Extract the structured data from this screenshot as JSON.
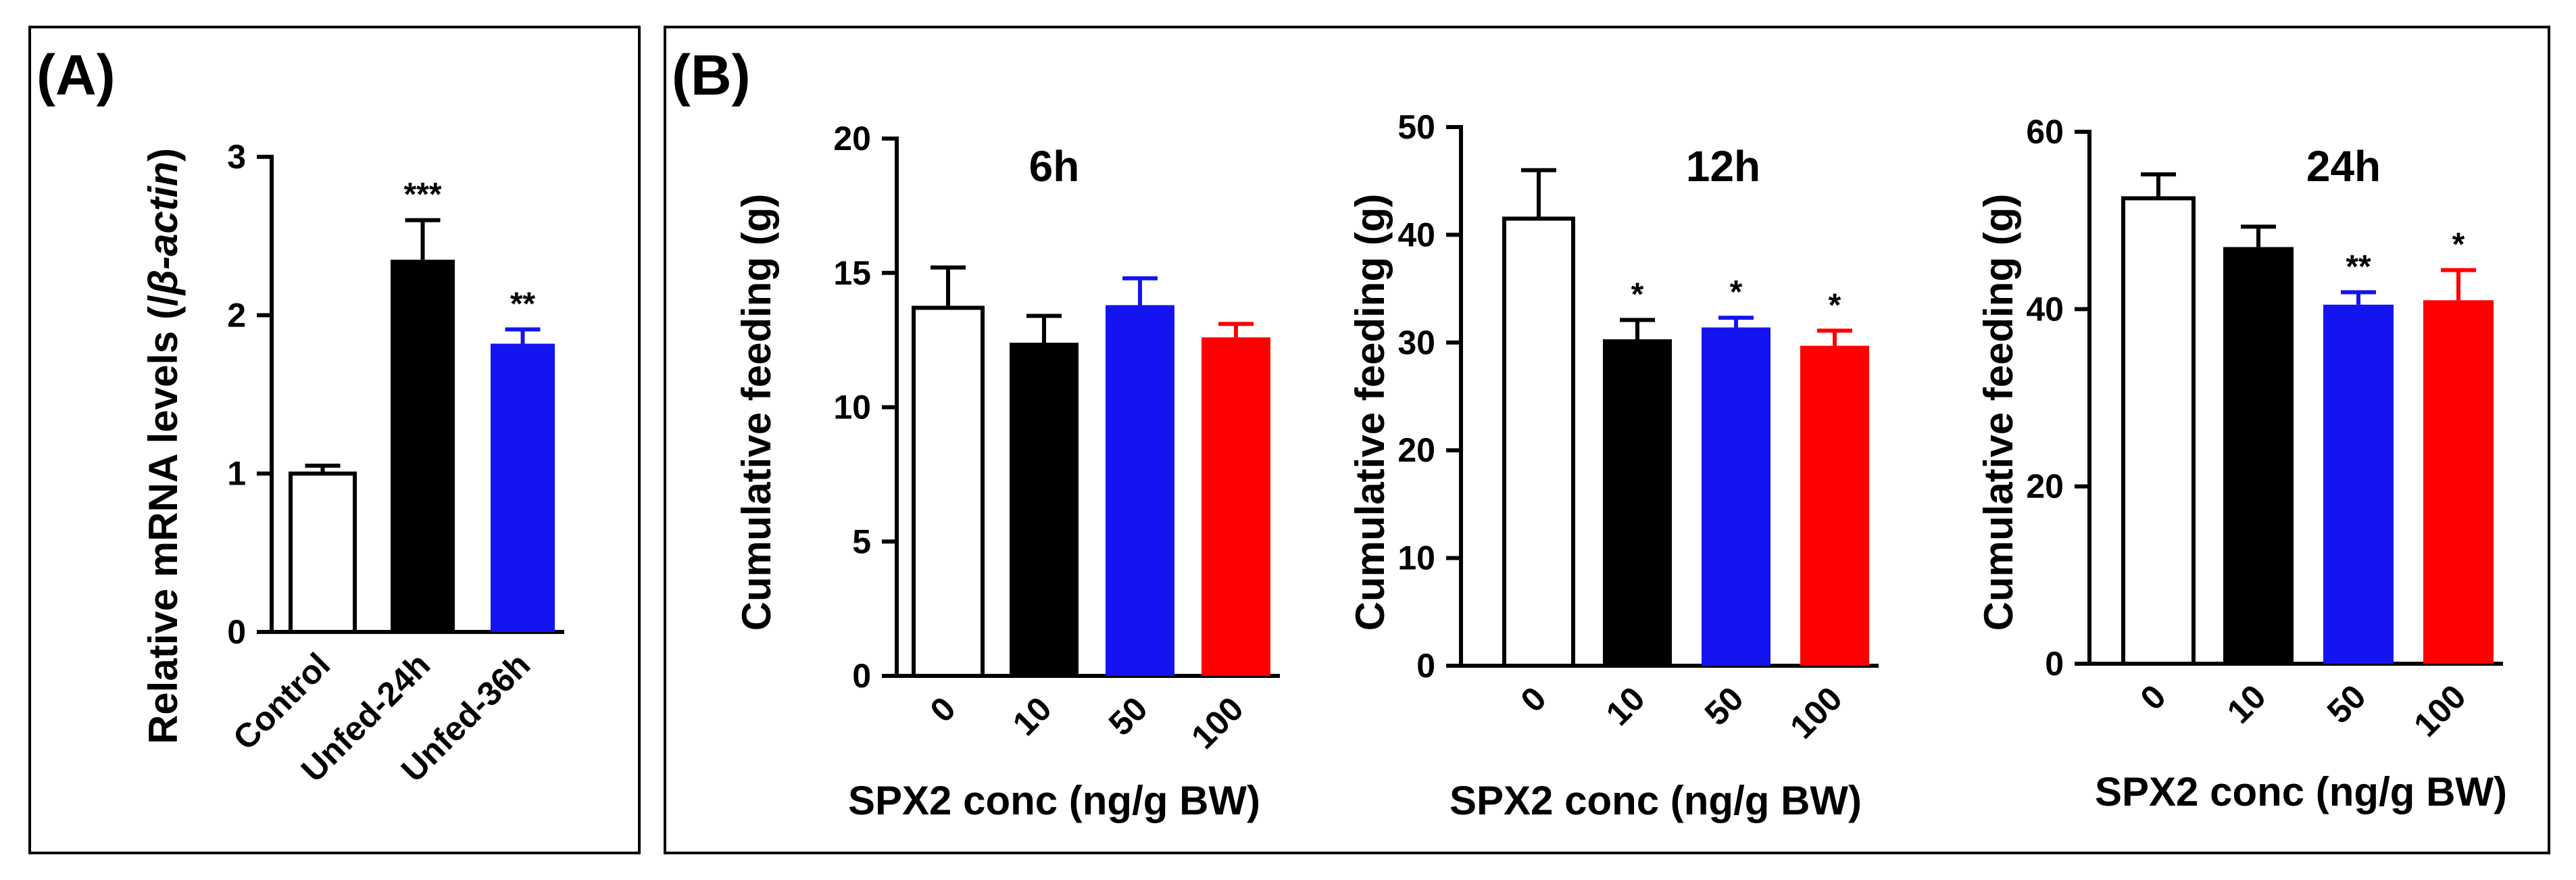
{
  "figure": {
    "panel_A_label": "(A)",
    "panel_B_label": "(B)"
  },
  "colors": {
    "white_bar": "#ffffff",
    "black_bar": "#000000",
    "blue_bar": "#1414f0",
    "red_bar": "#ff0000"
  },
  "chart_data": [
    {
      "id": "A",
      "type": "bar",
      "title": "",
      "ylabel": "Relative mRNA levels (/β-actin)",
      "ylabel_parts": [
        "Relative mRNA levels (/",
        "β-actin",
        ")"
      ],
      "xlabel": "",
      "ylim": [
        0,
        3
      ],
      "yticks": [
        0,
        1,
        2,
        3
      ],
      "categories": [
        "Control",
        "Unfed-24h",
        "Unfed-36h"
      ],
      "values": [
        1.0,
        2.35,
        1.82
      ],
      "errors": [
        0.05,
        0.25,
        0.09
      ],
      "significance": [
        "",
        "***",
        "**"
      ],
      "colors": [
        "#ffffff",
        "#000000",
        "#1414f0"
      ]
    },
    {
      "id": "B1",
      "type": "bar",
      "title": "6h",
      "ylabel": "Cumulative feeding (g)",
      "xlabel": "SPX2 conc (ng/g BW)",
      "ylim": [
        0,
        20
      ],
      "yticks": [
        0,
        5,
        10,
        15,
        20
      ],
      "categories": [
        "0",
        "10",
        "50",
        "100"
      ],
      "values": [
        13.7,
        12.4,
        13.8,
        12.6
      ],
      "errors": [
        1.5,
        1.0,
        1.0,
        0.5
      ],
      "significance": [
        "",
        "",
        "",
        ""
      ],
      "colors": [
        "#ffffff",
        "#000000",
        "#1414f0",
        "#ff0000"
      ]
    },
    {
      "id": "B2",
      "type": "bar",
      "title": "12h",
      "ylabel": "Cumulative feeding (g)",
      "xlabel": "SPX2 conc (ng/g BW)",
      "ylim": [
        0,
        50
      ],
      "yticks": [
        0,
        10,
        20,
        30,
        40,
        50
      ],
      "categories": [
        "0",
        "10",
        "50",
        "100"
      ],
      "values": [
        41.5,
        30.3,
        31.4,
        29.7
      ],
      "errors": [
        4.5,
        1.8,
        0.9,
        1.4
      ],
      "significance": [
        "",
        "*",
        "*",
        "*"
      ],
      "colors": [
        "#ffffff",
        "#000000",
        "#1414f0",
        "#ff0000"
      ]
    },
    {
      "id": "B3",
      "type": "bar",
      "title": "24h",
      "ylabel": "Cumulative feeding (g)",
      "xlabel": "SPX2 conc (ng/g BW)",
      "ylim": [
        0,
        60
      ],
      "yticks": [
        0,
        20,
        40,
        60
      ],
      "categories": [
        "0",
        "10",
        "50",
        "100"
      ],
      "values": [
        52.5,
        47.0,
        40.5,
        41.0
      ],
      "errors": [
        2.7,
        2.3,
        1.4,
        3.4
      ],
      "significance": [
        "",
        "",
        "**",
        "*"
      ],
      "colors": [
        "#ffffff",
        "#000000",
        "#1414f0",
        "#ff0000"
      ]
    }
  ]
}
